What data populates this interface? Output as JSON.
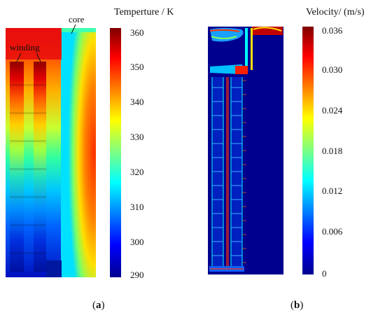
{
  "panel_a": {
    "title": "Temperture / K",
    "annotation_core": "core",
    "annotation_winding": "winding",
    "ticks": [
      "360",
      "350",
      "340",
      "330",
      "320",
      "310",
      "300",
      "290"
    ],
    "caption_open": "(",
    "caption_letter": "a",
    "caption_close": ")"
  },
  "panel_b": {
    "title": "Velocity/ (m/s)",
    "ticks": [
      "0.036",
      "0.030",
      "0.024",
      "0.018",
      "0.012",
      "0.006",
      "0"
    ],
    "caption_open": "(",
    "caption_letter": "b",
    "caption_close": ")"
  },
  "colors": {
    "jet_low": "#00008f",
    "jet_high": "#800000"
  }
}
